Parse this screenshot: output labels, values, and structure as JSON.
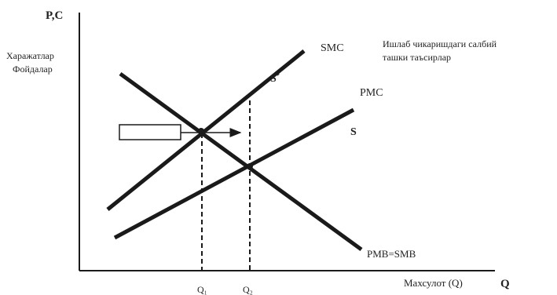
{
  "axes": {
    "y_symbol": "P,C",
    "y_label_line1": "Харажатлар",
    "y_label_line2": "Фойдалар",
    "x_label": "Махсулот (Q)",
    "x_symbol": "Q"
  },
  "curves": {
    "smc": "SMC",
    "s_prime": "S´",
    "pmc": "PMC",
    "s": "S",
    "pmb_smb": "PMB=SMB"
  },
  "annotation": {
    "line1": "Ишлаб чикаришдаги салбий",
    "line2": "ташки таъсирлар"
  },
  "quantities": {
    "q1": "Q₁",
    "q2": "Q₂"
  },
  "colors": {
    "ink": "#1a1a1a",
    "text": "#222222"
  }
}
